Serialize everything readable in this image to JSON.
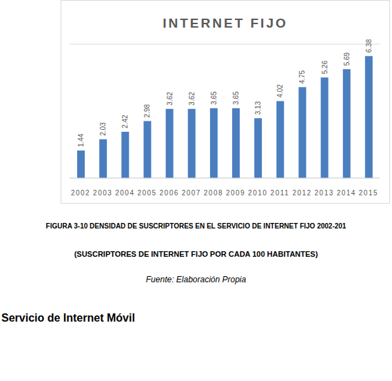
{
  "chart_data": {
    "type": "bar",
    "title": "INTERNET FIJO",
    "categories": [
      "2002",
      "2003",
      "2004",
      "2005",
      "2006",
      "2007",
      "2008",
      "2009",
      "2010",
      "2011",
      "2012",
      "2013",
      "2014",
      "2015"
    ],
    "values": [
      1.44,
      2.03,
      2.42,
      2.98,
      3.62,
      3.62,
      3.65,
      3.65,
      3.13,
      4.02,
      4.75,
      5.26,
      5.69,
      6.38
    ],
    "color": "#4a7ebf",
    "ylim": [
      0,
      7
    ],
    "yticks": [
      0,
      1,
      2,
      3,
      4,
      5,
      6,
      7
    ],
    "grid": true,
    "data_labels": true,
    "tick_labels": "x"
  },
  "document": {
    "caption": "FIGURA 3-10 DENSIDAD DE SUSCRIPTORES EN EL SERVICIO DE INTERNET FIJO 2002-201",
    "subcaption": "(SUSCRIPTORES DE INTERNET FIJO POR CADA 100 HABITANTES)",
    "source": "Fuente: Elaboración Propia",
    "heading": "Servicio de Internet Móvil"
  }
}
